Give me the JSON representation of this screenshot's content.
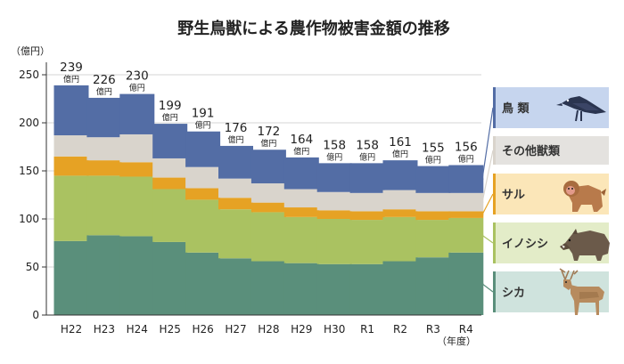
{
  "chart_data": {
    "type": "bar",
    "stacked": true,
    "title": "野生鳥獣による農作物被害金額の推移",
    "ylabel": "（億円）",
    "xlabel": "（年度）",
    "ylim": [
      0,
      250
    ],
    "yticks": [
      0,
      50,
      100,
      150,
      200,
      250
    ],
    "categories": [
      "H22",
      "H23",
      "H24",
      "H25",
      "H26",
      "H27",
      "H28",
      "H29",
      "H30",
      "R1",
      "R2",
      "R3",
      "R4"
    ],
    "totals": [
      239,
      226,
      230,
      199,
      191,
      176,
      172,
      164,
      158,
      158,
      161,
      155,
      156
    ],
    "total_unit": "億円",
    "series": [
      {
        "name": "シカ",
        "color": "#5a8f7b",
        "legend_color": "#cfe3dd",
        "values": [
          77,
          83,
          82,
          76,
          65,
          59,
          56,
          54,
          53,
          53,
          56,
          60,
          65
        ]
      },
      {
        "name": "イノシシ",
        "color": "#aac261",
        "legend_color": "#e3ecc8",
        "values": [
          68,
          62,
          62,
          55,
          55,
          51,
          51,
          48,
          47,
          46,
          46,
          39,
          36
        ]
      },
      {
        "name": "サル",
        "color": "#e6a224",
        "legend_color": "#fbe6b8",
        "values": [
          20,
          16,
          15,
          12,
          12,
          12,
          10,
          10,
          9,
          9,
          8,
          9,
          7
        ]
      },
      {
        "name": "その他獣類",
        "color": "#d9d4cc",
        "legend_color": "#e4e2df",
        "values": [
          22,
          24,
          29,
          20,
          22,
          20,
          20,
          19,
          19,
          19,
          20,
          19,
          19
        ]
      },
      {
        "name": "鳥類",
        "color": "#536da5",
        "legend_color": "#c6d5ee",
        "values": [
          52,
          41,
          42,
          36,
          37,
          34,
          35,
          33,
          30,
          31,
          31,
          28,
          29
        ]
      }
    ],
    "legend_labels": [
      "鳥 類",
      "その他獣類",
      "サル",
      "イノシシ",
      "シカ"
    ]
  },
  "icons": {
    "crow": "crow-icon",
    "monkey": "monkey-icon",
    "boar": "boar-icon",
    "deer": "deer-icon"
  }
}
